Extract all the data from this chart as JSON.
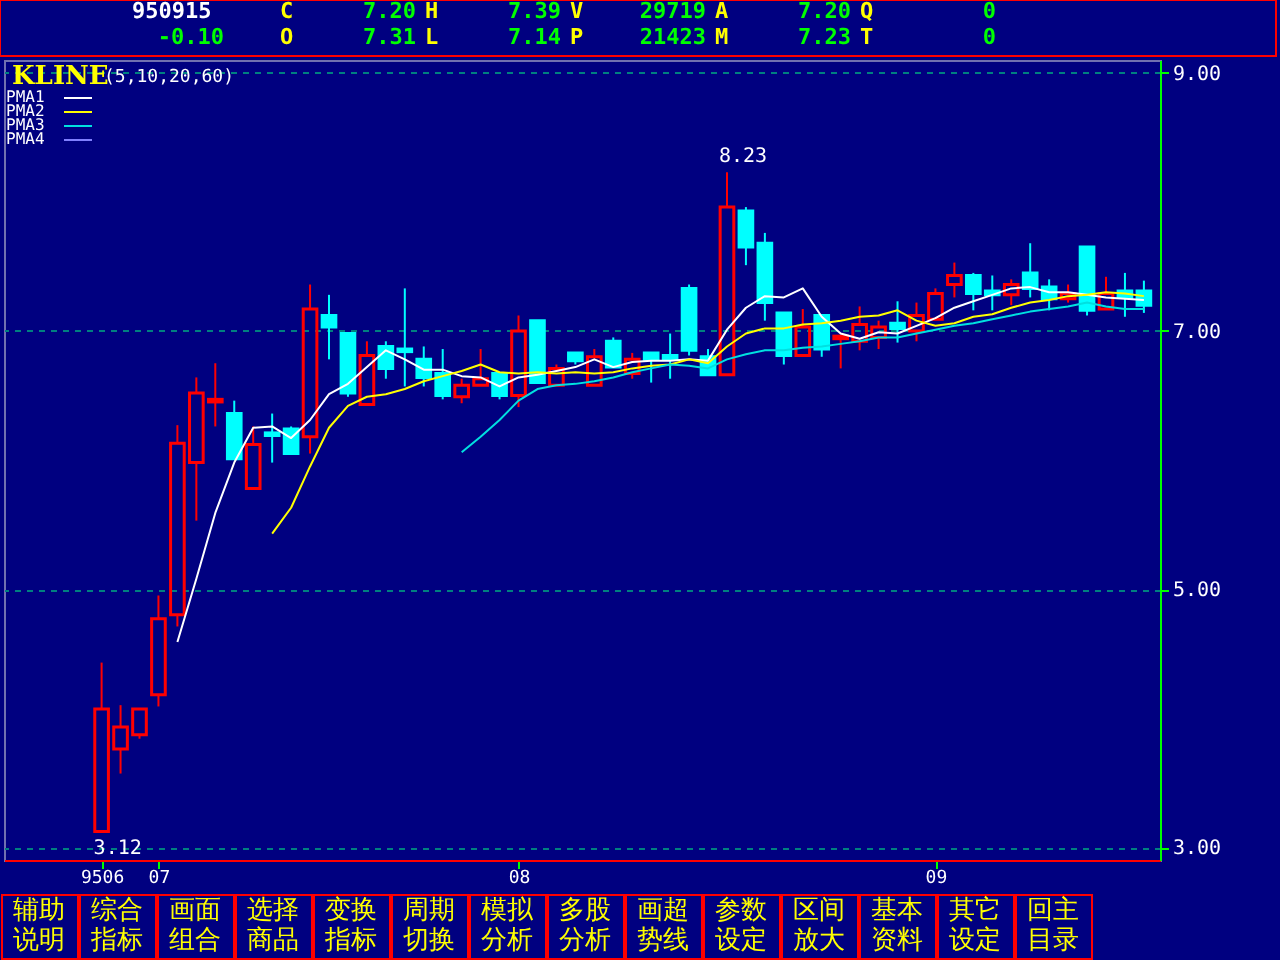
{
  "chart_data": {
    "type": "candlestick",
    "title": "KLINE",
    "subtitle": "(5,10,20,60)",
    "categories": [
      "9506",
      null,
      null,
      "07",
      null,
      null,
      null,
      null,
      null,
      null,
      null,
      null,
      null,
      null,
      null,
      null,
      null,
      null,
      null,
      null,
      null,
      null,
      "08",
      null,
      null,
      null,
      null,
      null,
      null,
      null,
      null,
      null,
      null,
      null,
      null,
      null,
      null,
      null,
      null,
      null,
      null,
      null,
      null,
      null,
      "09",
      null,
      null,
      null,
      null,
      null,
      null,
      null,
      null,
      null,
      null,
      null
    ],
    "ohlc": [
      [
        3.12,
        4.43,
        3.12,
        4.07
      ],
      [
        3.76,
        4.1,
        3.57,
        3.93
      ],
      [
        3.87,
        4.07,
        3.84,
        4.07
      ],
      [
        4.18,
        4.95,
        4.09,
        4.77
      ],
      [
        4.8,
        6.27,
        4.71,
        6.13
      ],
      [
        5.98,
        6.64,
        5.53,
        6.52
      ],
      [
        6.45,
        6.75,
        6.26,
        6.47
      ],
      [
        6.36,
        6.46,
        6.01,
        6.01
      ],
      [
        5.78,
        6.26,
        5.78,
        6.12
      ],
      [
        6.21,
        6.36,
        5.98,
        6.19
      ],
      [
        6.24,
        6.26,
        6.04,
        6.05
      ],
      [
        6.18,
        7.36,
        6.05,
        7.17
      ],
      [
        7.12,
        7.28,
        6.78,
        7.03
      ],
      [
        6.98,
        6.98,
        6.49,
        6.52
      ],
      [
        6.43,
        6.92,
        6.43,
        6.81
      ],
      [
        6.88,
        6.92,
        6.63,
        6.71
      ],
      [
        6.86,
        7.33,
        6.57,
        6.84
      ],
      [
        6.78,
        6.88,
        6.57,
        6.64
      ],
      [
        6.67,
        6.86,
        6.47,
        6.5
      ],
      [
        6.49,
        6.63,
        6.44,
        6.58
      ],
      [
        6.58,
        6.86,
        6.58,
        6.63
      ],
      [
        6.67,
        6.67,
        6.47,
        6.5
      ],
      [
        6.5,
        7.12,
        6.41,
        7.0
      ],
      [
        7.08,
        7.08,
        6.6,
        6.6
      ],
      [
        6.58,
        6.74,
        6.58,
        6.71
      ],
      [
        6.83,
        6.83,
        6.74,
        6.77
      ],
      [
        6.58,
        6.86,
        6.58,
        6.8
      ],
      [
        6.92,
        6.95,
        6.72,
        6.72
      ],
      [
        6.67,
        6.83,
        6.63,
        6.78
      ],
      [
        6.83,
        6.83,
        6.6,
        6.78
      ],
      [
        6.81,
        6.98,
        6.63,
        6.78
      ],
      [
        7.33,
        7.36,
        6.81,
        6.85
      ],
      [
        6.8,
        6.86,
        6.66,
        6.66
      ],
      [
        6.66,
        8.23,
        6.66,
        7.96
      ],
      [
        7.93,
        7.96,
        7.51,
        7.65
      ],
      [
        7.68,
        7.76,
        7.08,
        7.22
      ],
      [
        7.14,
        7.14,
        6.74,
        6.81
      ],
      [
        6.81,
        7.17,
        6.8,
        7.03
      ],
      [
        7.12,
        7.12,
        6.8,
        6.86
      ],
      [
        6.94,
        6.97,
        6.71,
        6.96
      ],
      [
        6.92,
        7.19,
        6.85,
        7.05
      ],
      [
        6.95,
        7.08,
        6.86,
        7.03
      ],
      [
        7.06,
        7.23,
        6.91,
        7.02
      ],
      [
        7.0,
        7.22,
        6.92,
        7.12
      ],
      [
        7.09,
        7.33,
        7.09,
        7.29
      ],
      [
        7.36,
        7.53,
        7.26,
        7.43
      ],
      [
        7.43,
        7.45,
        7.16,
        7.29
      ],
      [
        7.31,
        7.43,
        7.16,
        7.28
      ],
      [
        7.28,
        7.4,
        7.2,
        7.36
      ],
      [
        7.45,
        7.68,
        7.26,
        7.33
      ],
      [
        7.34,
        7.4,
        7.16,
        7.25
      ],
      [
        7.25,
        7.36,
        7.22,
        7.29
      ],
      [
        7.65,
        7.65,
        7.12,
        7.16
      ],
      [
        7.17,
        7.42,
        7.17,
        7.29
      ],
      [
        7.31,
        7.45,
        7.11,
        7.26
      ],
      [
        7.31,
        7.39,
        7.14,
        7.2
      ]
    ],
    "colors": [
      "#ff0000",
      "#ff0000",
      "#ff0000",
      "#ff0000",
      "#ff0000",
      "#ff0000",
      "#ff0000",
      "#00ffff",
      "#ff0000",
      "#00ffff",
      "#00ffff",
      "#ff0000",
      "#00ffff",
      "#00ffff",
      "#ff0000",
      "#00ffff",
      "#00ffff",
      "#00ffff",
      "#00ffff",
      "#ff0000",
      "#ff0000",
      "#00ffff",
      "#ff0000",
      "#00ffff",
      "#ff0000",
      "#00ffff",
      "#ff0000",
      "#00ffff",
      "#ff0000",
      "#00ffff",
      "#00ffff",
      "#00ffff",
      "#00ffff",
      "#ff0000",
      "#00ffff",
      "#00ffff",
      "#00ffff",
      "#ff0000",
      "#00ffff",
      "#ff0000",
      "#ff0000",
      "#ff0000",
      "#00ffff",
      "#ff0000",
      "#ff0000",
      "#ff0000",
      "#00ffff",
      "#00ffff",
      "#ff0000",
      "#00ffff",
      "#00ffff",
      "#ff0000",
      "#00ffff",
      "#ff0000",
      "#00ffff",
      "#00ffff"
    ],
    "series": [
      {
        "name": "PMA1",
        "type": "line",
        "color": "#ffffff",
        "values": [
          null,
          null,
          null,
          null,
          4.59,
          5.08,
          5.59,
          5.98,
          6.25,
          6.26,
          6.17,
          6.31,
          6.51,
          6.59,
          6.72,
          6.85,
          6.78,
          6.7,
          6.7,
          6.65,
          6.64,
          6.57,
          6.64,
          6.66,
          6.69,
          6.72,
          6.78,
          6.72,
          6.76,
          6.77,
          6.77,
          6.78,
          6.77,
          7.01,
          7.18,
          7.27,
          7.26,
          7.33,
          7.11,
          6.98,
          6.94,
          6.99,
          6.98,
          7.04,
          7.1,
          7.18,
          7.23,
          7.28,
          7.33,
          7.34,
          7.3,
          7.3,
          7.28,
          7.26,
          7.25,
          7.24
        ]
      },
      {
        "name": "PMA2",
        "type": "line",
        "color": "#ffff00",
        "values": [
          null,
          null,
          null,
          null,
          null,
          null,
          null,
          null,
          null,
          5.43,
          5.63,
          5.95,
          6.25,
          6.42,
          6.49,
          6.51,
          6.55,
          6.61,
          6.65,
          6.69,
          6.74,
          6.68,
          6.67,
          6.68,
          6.67,
          6.68,
          6.67,
          6.68,
          6.71,
          6.73,
          6.74,
          6.78,
          6.75,
          6.88,
          6.98,
          7.02,
          7.02,
          7.05,
          7.06,
          7.08,
          7.11,
          7.12,
          7.16,
          7.08,
          7.04,
          7.06,
          7.11,
          7.13,
          7.18,
          7.22,
          7.24,
          7.27,
          7.28,
          7.3,
          7.29,
          7.27
        ]
      },
      {
        "name": "PMA3",
        "type": "line",
        "color": "#00e0e0",
        "values": [
          null,
          null,
          null,
          null,
          null,
          null,
          null,
          null,
          null,
          null,
          null,
          null,
          null,
          null,
          null,
          null,
          null,
          null,
          null,
          6.06,
          6.18,
          6.31,
          6.46,
          6.55,
          6.58,
          6.59,
          6.61,
          6.64,
          6.68,
          6.71,
          6.74,
          6.73,
          6.71,
          6.78,
          6.82,
          6.85,
          6.85,
          6.87,
          6.88,
          6.9,
          6.92,
          6.95,
          6.95,
          6.98,
          7.01,
          7.04,
          7.06,
          7.09,
          7.12,
          7.15,
          7.17,
          7.19,
          7.22,
          7.19,
          7.17,
          7.17
        ]
      },
      {
        "name": "PMA4",
        "type": "line",
        "color": "#8080ff",
        "values": [
          null,
          null,
          null,
          null,
          null,
          null,
          null,
          null,
          null,
          null,
          null,
          null,
          null,
          null,
          null,
          null,
          null,
          null,
          null,
          null,
          null,
          null,
          null,
          null,
          null,
          null,
          null,
          null,
          null,
          null,
          null,
          null,
          null,
          null,
          null,
          null,
          null,
          null,
          null,
          null,
          null,
          null,
          null,
          null,
          null,
          null,
          null,
          null,
          null,
          null,
          null,
          null,
          null,
          null,
          null,
          null
        ]
      }
    ],
    "ylim": [
      2.9,
      9.1
    ],
    "yticks": [
      {
        "value": 9,
        "label": "9.00"
      },
      {
        "value": 7,
        "label": "7.00"
      },
      {
        "value": 5,
        "label": "5.00"
      },
      {
        "value": 3,
        "label": "3.00"
      }
    ],
    "grid": "y",
    "legend": "top left",
    "annotations": [
      "950915",
      "C",
      "7.20",
      "H",
      "7.39",
      "V",
      "29719",
      "A",
      "7.20",
      "Q",
      "0",
      "-0.10",
      "O",
      "7.31",
      "L",
      "7.14",
      "P",
      "21423",
      "M",
      "7.23",
      "T",
      "0",
      "辅助说明",
      "综合指标",
      "画面组合",
      "选择商品",
      "变换指标",
      "周期切换",
      "模拟分析",
      "多股分析",
      "画超势线",
      "参数设定",
      "区间放大",
      "基本资料",
      "其它设定",
      "回主目录",
      "3.12",
      "8.23"
    ]
  }
}
